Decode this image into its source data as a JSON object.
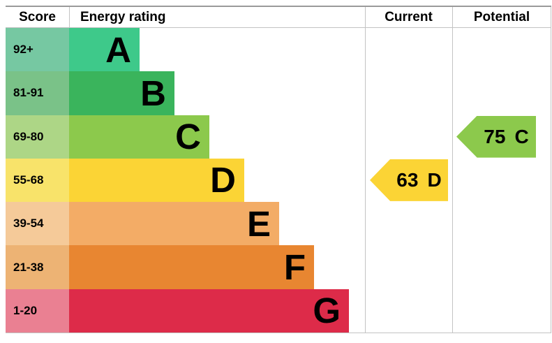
{
  "header": {
    "score_label": "Score",
    "rating_label": "Energy rating",
    "current_label": "Current",
    "potential_label": "Potential"
  },
  "bands": [
    {
      "score": "92+",
      "letter": "A",
      "bar_color": "#3ec98a",
      "score_color": "#76c8a2"
    },
    {
      "score": "81-91",
      "letter": "B",
      "bar_color": "#3ab45c",
      "score_color": "#7ac288"
    },
    {
      "score": "69-80",
      "letter": "C",
      "bar_color": "#8cc94c",
      "score_color": "#add686"
    },
    {
      "score": "55-68",
      "letter": "D",
      "bar_color": "#fbd435",
      "score_color": "#f8e36a"
    },
    {
      "score": "39-54",
      "letter": "E",
      "bar_color": "#f3ac66",
      "score_color": "#f5ca99"
    },
    {
      "score": "21-38",
      "letter": "F",
      "bar_color": "#e88631",
      "score_color": "#edb374"
    },
    {
      "score": "1-20",
      "letter": "G",
      "bar_color": "#dd2b49",
      "score_color": "#ea8092"
    }
  ],
  "current": {
    "value": "63",
    "band": "D",
    "color": "#fbd435",
    "row_index": 3
  },
  "potential": {
    "value": "75",
    "band": "C",
    "color": "#8cc94c",
    "row_index": 2
  },
  "chart_data": {
    "type": "bar",
    "title": "Energy rating (EPC efficiency chart)",
    "categories": [
      "A",
      "B",
      "C",
      "D",
      "E",
      "F",
      "G"
    ],
    "score_ranges": [
      "92+",
      "81-91",
      "69-80",
      "55-68",
      "39-54",
      "21-38",
      "1-20"
    ],
    "bar_lengths_relative": [
      1,
      2,
      3,
      4,
      5,
      6,
      7
    ],
    "band_colors": [
      "#3ec98a",
      "#3ab45c",
      "#8cc94c",
      "#fbd435",
      "#f3ac66",
      "#e88631",
      "#dd2b49"
    ],
    "markers": [
      {
        "label": "Current",
        "value": 63,
        "band": "D"
      },
      {
        "label": "Potential",
        "value": 75,
        "band": "C"
      }
    ],
    "legend_position": "none",
    "grid": false
  }
}
